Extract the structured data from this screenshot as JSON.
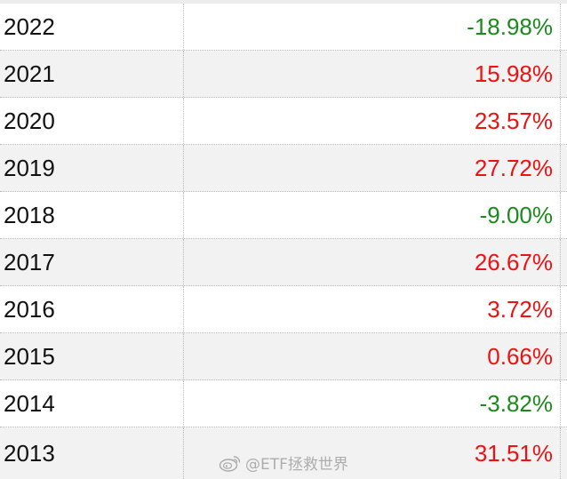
{
  "rows": [
    {
      "year": "2022",
      "value": "-18.98%",
      "color": "#1a8a1a"
    },
    {
      "year": "2021",
      "value": "15.98%",
      "color": "#ee1111"
    },
    {
      "year": "2020",
      "value": "23.57%",
      "color": "#ee1111"
    },
    {
      "year": "2019",
      "value": "27.72%",
      "color": "#ee1111"
    },
    {
      "year": "2018",
      "value": "-9.00%",
      "color": "#1a8a1a"
    },
    {
      "year": "2017",
      "value": "26.67%",
      "color": "#ee1111"
    },
    {
      "year": "2016",
      "value": "3.72%",
      "color": "#ee1111"
    },
    {
      "year": "2015",
      "value": "0.66%",
      "color": "#ee1111"
    },
    {
      "year": "2014",
      "value": "-3.82%",
      "color": "#1a8a1a"
    },
    {
      "year": "2013",
      "value": "31.51%",
      "color": "#ee1111"
    }
  ],
  "watermark": {
    "text": "@ETF拯救世界",
    "icon": "weibo-icon"
  }
}
